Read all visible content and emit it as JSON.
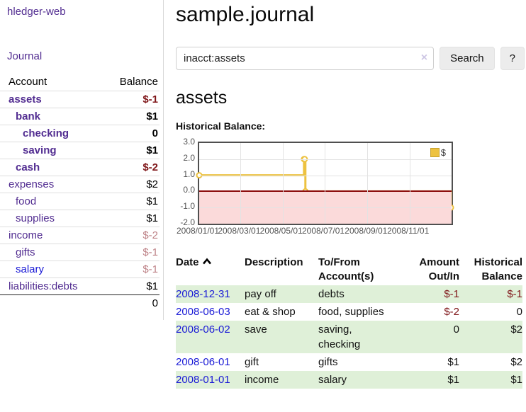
{
  "app": {
    "title": "hledger-web"
  },
  "sidebar": {
    "journal_label": "Journal",
    "accounts": {
      "headers": {
        "account": "Account",
        "balance": "Balance"
      },
      "rows": [
        {
          "name": "assets",
          "balance": "$-1"
        },
        {
          "name": "bank",
          "balance": "$1"
        },
        {
          "name": "checking",
          "balance": "0"
        },
        {
          "name": "saving",
          "balance": "$1"
        },
        {
          "name": "cash",
          "balance": "$-2"
        },
        {
          "name": "expenses",
          "balance": "$2"
        },
        {
          "name": "food",
          "balance": "$1"
        },
        {
          "name": "supplies",
          "balance": "$1"
        },
        {
          "name": "income",
          "balance": "$-2"
        },
        {
          "name": "gifts",
          "balance": "$-1"
        },
        {
          "name": "salary",
          "balance": "$-1"
        },
        {
          "name": "liabilities:debts",
          "balance": "$1"
        }
      ],
      "total": "0"
    }
  },
  "main": {
    "title": "sample.journal",
    "search": {
      "value": "inacct:assets",
      "clear_icon": "×",
      "search_label": "Search",
      "help_label": "?"
    },
    "account_heading": "assets",
    "chart_label": "Historical Balance:",
    "register": {
      "headers": {
        "date": "Date",
        "description": "Description",
        "accounts": "To/From Account(s)",
        "amount": "Amount Out/In",
        "balance": "Historical Balance"
      },
      "rows": [
        {
          "date": "2008-12-31",
          "description": "pay off",
          "accounts": "debts",
          "amount": "$-1",
          "balance": "$-1"
        },
        {
          "date": "2008-06-03",
          "description": "eat & shop",
          "accounts": "food, supplies",
          "amount": "$-2",
          "balance": "0"
        },
        {
          "date": "2008-06-02",
          "description": "save",
          "accounts": "saving, checking",
          "amount": "0",
          "balance": "$2"
        },
        {
          "date": "2008-06-01",
          "description": "gift",
          "accounts": "gifts",
          "amount": "$1",
          "balance": "$2"
        },
        {
          "date": "2008-01-01",
          "description": "income",
          "accounts": "salary",
          "amount": "$1",
          "balance": "$1"
        }
      ]
    }
  },
  "chart_data": {
    "type": "line",
    "title": "Historical Balance",
    "style": "step",
    "series": [
      {
        "name": "$",
        "color": "#edc240",
        "points": [
          [
            "2008-01-01",
            1
          ],
          [
            "2008-06-01",
            2
          ],
          [
            "2008-06-02",
            2
          ],
          [
            "2008-06-03",
            0
          ],
          [
            "2008-12-31",
            -1
          ]
        ]
      }
    ],
    "ylim": [
      -2,
      3
    ],
    "xlim": [
      "2008-01-01",
      "2009-01-01"
    ],
    "yticks": [
      "3.0",
      "2.0",
      "1.0",
      "0.0",
      "-1.0",
      "-2.0"
    ],
    "xticks": [
      "2008/01/01",
      "2008/03/01",
      "2008/05/01",
      "2008/07/01",
      "2008/09/01",
      "2008/11/01"
    ],
    "grid": true,
    "legend": {
      "position": "top-right",
      "label": "$"
    },
    "negative_region_color": "#fbdada",
    "zero_line_color": "#8b0b0b"
  },
  "colors": {
    "accent_purple": "#522d91",
    "link_blue": "#1a1ad6",
    "negative": "#7f1619",
    "negative_faded": "#bd8186",
    "row_green": "#dff0d8",
    "chart_yellow": "#edc240"
  }
}
